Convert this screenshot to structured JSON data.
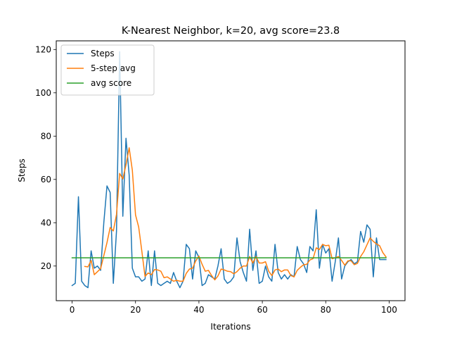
{
  "chart_data": {
    "type": "line",
    "title": "K-Nearest Neighbor, k=20, avg score=23.8",
    "xlabel": "Iterations",
    "ylabel": "Steps",
    "xlim": [
      -5,
      105
    ],
    "ylim": [
      4,
      124
    ],
    "xticks": [
      0,
      20,
      40,
      60,
      80,
      100
    ],
    "yticks": [
      20,
      40,
      60,
      80,
      100,
      120
    ],
    "grid": false,
    "legend_position": "upper-left",
    "series": [
      {
        "name": "Steps",
        "color": "#1f77b4",
        "x": [
          0,
          1,
          2,
          3,
          4,
          5,
          6,
          7,
          8,
          9,
          10,
          11,
          12,
          13,
          14,
          15,
          16,
          17,
          18,
          19,
          20,
          21,
          22,
          23,
          24,
          25,
          26,
          27,
          28,
          29,
          30,
          31,
          32,
          33,
          34,
          35,
          36,
          37,
          38,
          39,
          40,
          41,
          42,
          43,
          44,
          45,
          46,
          47,
          48,
          49,
          50,
          51,
          52,
          53,
          54,
          55,
          56,
          57,
          58,
          59,
          60,
          61,
          62,
          63,
          64,
          65,
          66,
          67,
          68,
          69,
          70,
          71,
          72,
          73,
          74,
          75,
          76,
          77,
          78,
          79,
          80,
          81,
          82,
          83,
          84,
          85,
          86,
          87,
          88,
          89,
          90,
          91,
          92,
          93,
          94,
          95,
          96,
          97,
          98,
          99
        ],
        "y": [
          11,
          12,
          52,
          13,
          11,
          10,
          27,
          19,
          20,
          18,
          40,
          57,
          54,
          12,
          36,
          119,
          43,
          79,
          62,
          19,
          15,
          15,
          13,
          14,
          27,
          11,
          27,
          12,
          11,
          12,
          13,
          12,
          17,
          13,
          10,
          13,
          30,
          28,
          14,
          27,
          24,
          11,
          12,
          16,
          15,
          14,
          20,
          28,
          14,
          12,
          13,
          15,
          33,
          22,
          17,
          13,
          37,
          18,
          27,
          12,
          13,
          20,
          15,
          13,
          30,
          17,
          14,
          16,
          14,
          16,
          15,
          29,
          23,
          21,
          17,
          29,
          27,
          46,
          19,
          30,
          26,
          28,
          13,
          22,
          33,
          14,
          20,
          22,
          23,
          21,
          22,
          36,
          31,
          39,
          37,
          15,
          33,
          23,
          23,
          23
        ]
      },
      {
        "name": "5-step avg",
        "color": "#ff7f0e",
        "x": [
          4,
          5,
          6,
          7,
          8,
          9,
          10,
          11,
          12,
          13,
          14,
          15,
          16,
          17,
          18,
          19,
          20,
          21,
          22,
          23,
          24,
          25,
          26,
          27,
          28,
          29,
          30,
          31,
          32,
          33,
          34,
          35,
          36,
          37,
          38,
          39,
          40,
          41,
          42,
          43,
          44,
          45,
          46,
          47,
          48,
          49,
          50,
          51,
          52,
          53,
          54,
          55,
          56,
          57,
          58,
          59,
          60,
          61,
          62,
          63,
          64,
          65,
          66,
          67,
          68,
          69,
          70,
          71,
          72,
          73,
          74,
          75,
          76,
          77,
          78,
          79,
          80,
          81,
          82,
          83,
          84,
          85,
          86,
          87,
          88,
          89,
          90,
          91,
          92,
          93,
          94,
          95,
          96,
          97,
          98,
          99
        ],
        "y": [
          19.8,
          19.6,
          22.6,
          16.0,
          17.4,
          18.8,
          24.8,
          30.8,
          37.8,
          36.2,
          43.8,
          62.8,
          60.2,
          66.8,
          74.6,
          64.2,
          43.6,
          38.0,
          26.8,
          15.2,
          16.8,
          16.0,
          18.4,
          18.2,
          17.6,
          14.6,
          15.0,
          14.0,
          13.0,
          13.4,
          13.0,
          13.0,
          16.6,
          18.6,
          19.0,
          22.4,
          24.6,
          20.8,
          17.6,
          18.0,
          15.6,
          13.6,
          15.4,
          18.6,
          18.2,
          17.6,
          17.4,
          16.4,
          17.4,
          19.0,
          20.0,
          20.0,
          24.4,
          21.4,
          24.4,
          21.4,
          21.4,
          22.0,
          17.6,
          15.6,
          18.2,
          18.6,
          17.4,
          18.2,
          18.2,
          15.6,
          15.0,
          18.0,
          19.4,
          20.6,
          20.8,
          22.8,
          23.4,
          28.4,
          27.6,
          30.0,
          29.4,
          29.6,
          23.4,
          23.8,
          24.4,
          22.6,
          20.4,
          22.4,
          22.4,
          20.6,
          21.2,
          24.4,
          26.6,
          29.8,
          33.0,
          31.4,
          30.2,
          29.4,
          26.2,
          24.2
        ]
      },
      {
        "name": "avg score",
        "color": "#2ca02c",
        "x": [
          0,
          99
        ],
        "y": [
          23.8,
          23.8
        ]
      }
    ]
  }
}
